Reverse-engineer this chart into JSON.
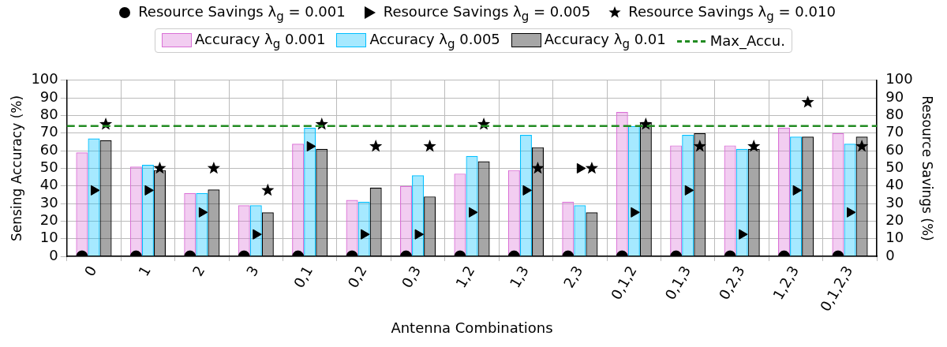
{
  "chart_data": {
    "type": "bar",
    "xlabel": "Antenna Combinations",
    "ylabel": "Sensing Accuracy (%)",
    "y2label": "Resource Savings (%)",
    "categories": [
      "0",
      "1",
      "2",
      "3",
      "0,1",
      "0,2",
      "0,3",
      "1,2",
      "1,3",
      "2,3",
      "0,1,2",
      "0,1,3",
      "0,2,3",
      "1,2,3",
      "0,1,2,3"
    ],
    "series": [
      {
        "name": "Resource Savings λ$_{g}$ = 0.001",
        "type": "scatter",
        "axis": "y2",
        "marker": "circle",
        "color": "#000000",
        "values": [
          0,
          0,
          0,
          0,
          0,
          0,
          0,
          0,
          0,
          0,
          0,
          0,
          0,
          0,
          0
        ]
      },
      {
        "name": "Resource Savings λ$_{g}$ = 0.005",
        "type": "scatter",
        "axis": "y2",
        "marker": "triangle",
        "color": "#000000",
        "values": [
          37.5,
          37.5,
          25,
          12.5,
          62.5,
          12.5,
          12.5,
          25,
          37.5,
          50,
          25,
          37.5,
          12.5,
          37.5,
          25
        ]
      },
      {
        "name": "Resource Savings λ$_{g}$ = 0.010",
        "type": "scatter",
        "axis": "y2",
        "marker": "star",
        "color": "#000000",
        "values": [
          75,
          50,
          50,
          37.5,
          75,
          62.5,
          62.5,
          75,
          50,
          50,
          75,
          62.5,
          62.5,
          87.5,
          62.5
        ]
      },
      {
        "name": "Accuracy λ$_{g}$ 0.001",
        "color": "#da70d6",
        "values": [
          59,
          51,
          36,
          29,
          64,
          32,
          40,
          47,
          49,
          31,
          82,
          63,
          63,
          73,
          70
        ]
      },
      {
        "name": "Accuracy λ$_{g}$ 0.005",
        "color": "#00bfff",
        "values": [
          67,
          52,
          36,
          29,
          73,
          31,
          46,
          57,
          69,
          29,
          74,
          69,
          61,
          68,
          64
        ]
      },
      {
        "name": "Accuracy λ$_{g}$ 0.01",
        "color": "#000000",
        "values": [
          66,
          49,
          38,
          25,
          61,
          39,
          34,
          54,
          62,
          25,
          76,
          70,
          61,
          68,
          68
        ]
      }
    ],
    "ref_lines": [
      {
        "axis": "y",
        "value": 74,
        "label": "Max_Accu.",
        "color": "#228b22",
        "line_style": "dashed"
      }
    ],
    "ylim": [
      0,
      100
    ],
    "yticks": [
      0,
      10,
      20,
      30,
      40,
      50,
      60,
      70,
      80,
      90,
      100
    ],
    "y2lim": [
      0,
      100
    ],
    "y2ticks": [
      0,
      10,
      20,
      30,
      40,
      50,
      60,
      70,
      80,
      90,
      100
    ],
    "grid": true,
    "legend": "top"
  }
}
